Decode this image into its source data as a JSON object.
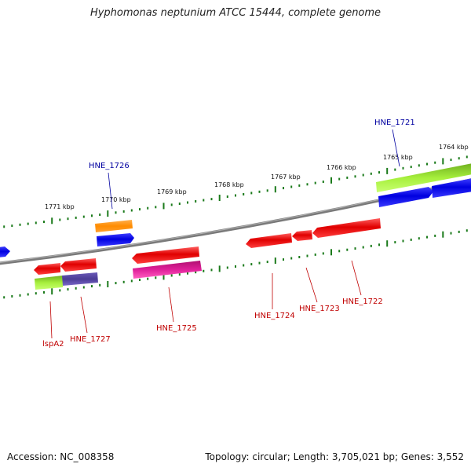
{
  "title": "Hyphomonas neptunium ATCC 15444, complete genome",
  "footer": {
    "accession": "Accession: NC_008358",
    "topology": "Topology: circular; Length: 3,705,021 bp; Genes: 3,552"
  },
  "colors": {
    "backbone": "#808080",
    "tick": "#1a7a1a",
    "gene_red": "#e00000",
    "gene_blue": "#0000e0",
    "gene_orange": "#ff8c00",
    "gene_green": "#99e633",
    "gene_purple": "#4b3c96",
    "gene_pink": "#e0209a",
    "label_red": "#c00000",
    "label_blue": "#0000a0"
  },
  "kbp_labels": [
    "1771 kbp",
    "1770 kbp",
    "1769 kbp",
    "1768 kbp",
    "1767 kbp",
    "1766 kbp",
    "1765 kbp",
    "1764 kbp"
  ],
  "gene_labels": {
    "lspA2": "lspA2",
    "HNE_1727": "HNE_1727",
    "HNE_1726": "HNE_1726",
    "HNE_1725": "HNE_1725",
    "HNE_1724": "HNE_1724",
    "HNE_1723": "HNE_1723",
    "HNE_1722": "HNE_1722",
    "HNE_1721": "HNE_1721"
  }
}
